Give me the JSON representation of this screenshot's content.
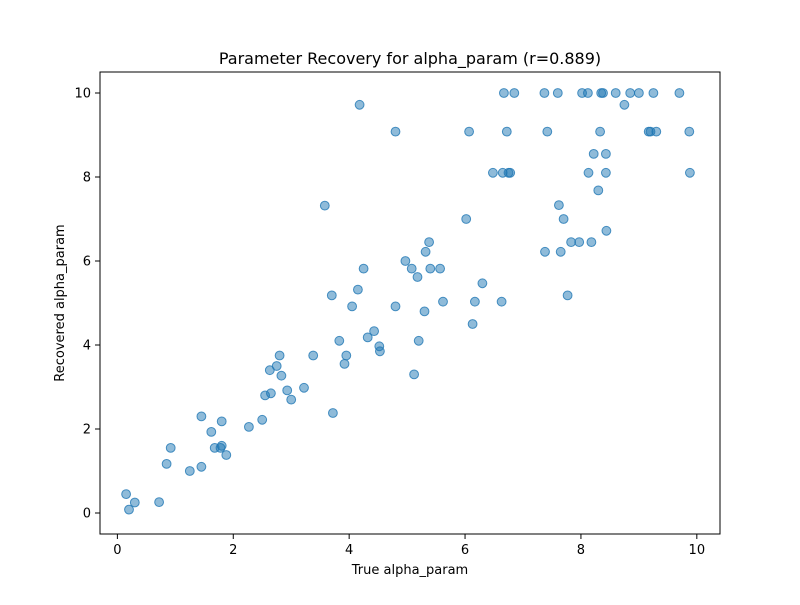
{
  "chart_data": {
    "type": "scatter",
    "title": "Parameter Recovery for alpha_param (r=0.889)",
    "xlabel": "True alpha_param",
    "ylabel": "Recovered alpha_param",
    "xlim": [
      -0.3,
      10.4
    ],
    "ylim": [
      -0.5,
      10.5
    ],
    "xticks": [
      0,
      2,
      4,
      6,
      8,
      10
    ],
    "yticks": [
      0,
      2,
      4,
      6,
      8,
      10
    ],
    "grid": false,
    "point_color": "#1f77b4",
    "point_alpha": 0.5,
    "x": [
      0.15,
      0.2,
      0.3,
      0.72,
      0.85,
      0.92,
      1.25,
      1.45,
      1.45,
      1.62,
      1.68,
      1.78,
      1.8,
      1.8,
      1.88,
      2.27,
      2.5,
      2.55,
      2.63,
      2.65,
      2.75,
      2.8,
      2.83,
      2.93,
      3.0,
      3.22,
      3.38,
      3.58,
      3.7,
      3.72,
      3.83,
      3.92,
      3.95,
      4.05,
      4.15,
      4.18,
      4.25,
      4.32,
      4.43,
      4.52,
      4.53,
      4.8,
      4.8,
      4.97,
      5.08,
      5.12,
      5.18,
      5.2,
      5.3,
      5.32,
      5.38,
      5.4,
      5.57,
      5.62,
      6.02,
      6.07,
      6.13,
      6.17,
      6.3,
      6.48,
      6.63,
      6.65,
      6.67,
      6.72,
      6.75,
      6.78,
      6.85,
      7.37,
      7.38,
      7.42,
      7.6,
      7.62,
      7.65,
      7.7,
      7.77,
      7.83,
      7.97,
      8.02,
      8.12,
      8.13,
      8.18,
      8.22,
      8.3,
      8.33,
      8.35,
      8.38,
      8.43,
      8.43,
      8.44,
      8.6,
      8.75,
      8.85,
      9.0,
      9.17,
      9.2,
      9.25,
      9.3,
      9.7,
      9.87,
      9.88
    ],
    "y": [
      0.45,
      0.08,
      0.25,
      0.26,
      1.17,
      1.55,
      1.0,
      1.1,
      2.3,
      1.93,
      1.55,
      1.55,
      1.6,
      2.18,
      1.38,
      2.05,
      2.22,
      2.8,
      3.4,
      2.85,
      3.5,
      3.75,
      3.27,
      2.92,
      2.7,
      2.98,
      3.75,
      7.32,
      5.18,
      2.38,
      4.1,
      3.55,
      3.75,
      4.92,
      5.32,
      9.72,
      5.82,
      4.18,
      4.33,
      3.97,
      3.85,
      9.08,
      4.92,
      6.0,
      5.82,
      3.3,
      5.62,
      4.1,
      4.8,
      6.22,
      6.45,
      5.82,
      5.82,
      5.03,
      7.0,
      9.08,
      4.5,
      5.03,
      5.47,
      8.1,
      5.03,
      8.1,
      10.0,
      9.08,
      8.1,
      8.1,
      10.0,
      10.0,
      6.22,
      9.08,
      10.0,
      7.33,
      6.22,
      7.0,
      5.18,
      6.45,
      6.45,
      10.0,
      10.0,
      8.1,
      6.45,
      8.55,
      7.68,
      9.08,
      10.0,
      10.0,
      8.1,
      8.55,
      6.72,
      10.0,
      9.72,
      10.0,
      10.0,
      9.08,
      9.08,
      10.0,
      9.08,
      10.0,
      9.08,
      8.1
    ]
  }
}
